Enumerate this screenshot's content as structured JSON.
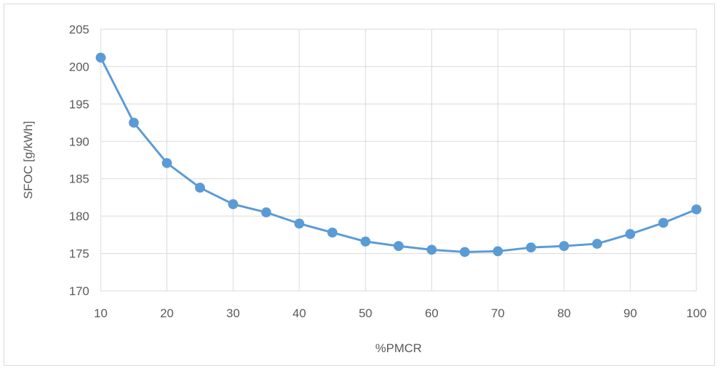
{
  "chart_data": {
    "type": "line",
    "title": "",
    "xlabel": "%PMCR",
    "ylabel": "SFOC [g/kWh]",
    "xlim": [
      10,
      100
    ],
    "ylim": [
      170,
      205
    ],
    "x_ticks": [
      "10",
      "20",
      "30",
      "40",
      "50",
      "60",
      "70",
      "80",
      "90",
      "100"
    ],
    "y_ticks": [
      "170",
      "175",
      "180",
      "185",
      "190",
      "195",
      "200",
      "205"
    ],
    "grid": true,
    "legend": "none",
    "line_color": "#5b9bd5",
    "series": [
      {
        "x": [
          10,
          15,
          20,
          25,
          30,
          35,
          40,
          45,
          50,
          55,
          60,
          65,
          70,
          75,
          80,
          85,
          90,
          95,
          100
        ],
        "values": [
          201.2,
          192.5,
          187.1,
          183.8,
          181.6,
          180.5,
          179.0,
          177.8,
          176.6,
          176.0,
          175.5,
          175.2,
          175.3,
          175.8,
          176.0,
          176.3,
          177.6,
          179.1,
          180.9
        ]
      }
    ]
  }
}
